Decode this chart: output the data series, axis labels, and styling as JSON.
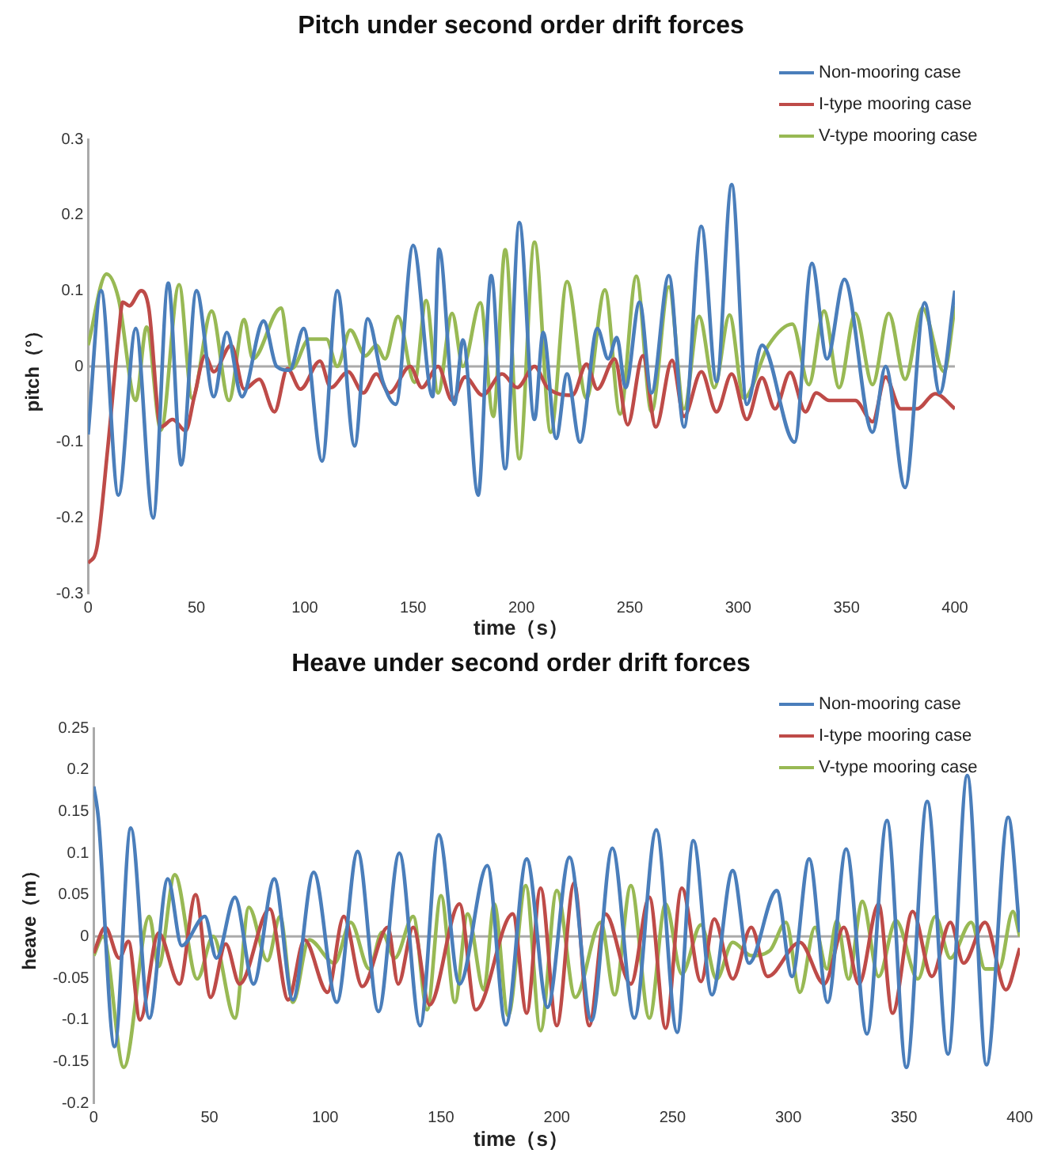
{
  "chart_data": [
    {
      "type": "line",
      "title": "Pitch under second order drift forces",
      "xlabel": "time（s）",
      "ylabel": "pitch（°）",
      "xlim": [
        0,
        400
      ],
      "xticks": [
        0,
        50,
        100,
        150,
        200,
        250,
        300,
        350,
        400
      ],
      "ylim": [
        -0.3,
        0.3
      ],
      "yticks": [
        -0.3,
        -0.2,
        -0.1,
        0,
        0.1,
        0.2,
        0.3
      ],
      "grid": false,
      "ref_lines": [
        {
          "axis": "y",
          "value": 0,
          "color": "#aaaaaa"
        }
      ],
      "legend": "top right",
      "marker": "none",
      "series": [
        {
          "name": "Non-mooring case",
          "color": "#4a7ebb",
          "x": [
            0,
            6,
            14,
            22,
            30,
            37,
            43,
            50,
            58,
            64,
            71,
            81,
            87,
            93,
            99.5,
            108,
            115,
            123,
            129,
            136,
            142,
            150,
            159,
            162,
            169,
            173,
            180,
            186,
            192.5,
            199,
            206,
            210,
            216,
            221,
            227,
            235,
            240,
            244,
            248,
            254.5,
            260,
            268,
            275,
            283,
            290,
            297,
            304,
            311,
            326,
            334,
            341,
            349,
            362,
            368,
            377,
            386,
            393,
            400
          ],
          "values": [
            -0.09,
            0.1,
            -0.17,
            0.05,
            -0.2,
            0.11,
            -0.13,
            0.1,
            -0.04,
            0.045,
            -0.04,
            0.06,
            0,
            -0.005,
            0.05,
            -0.125,
            0.1,
            -0.105,
            0.063,
            -0.02,
            -0.05,
            0.16,
            -0.04,
            0.155,
            -0.05,
            0.035,
            -0.17,
            0.12,
            -0.135,
            0.19,
            -0.07,
            0.045,
            -0.095,
            -0.01,
            -0.1,
            0.05,
            0.01,
            0.038,
            -0.028,
            0.085,
            -0.035,
            0.12,
            -0.08,
            0.185,
            -0.02,
            0.24,
            -0.05,
            0.028,
            -0.1,
            0.136,
            0.01,
            0.115,
            -0.087,
            0,
            -0.16,
            0.084,
            -0.035,
            0.1
          ]
        },
        {
          "name": "I-type mooring case",
          "color": "#be4b48",
          "x": [
            0,
            4,
            9,
            14,
            16,
            19,
            24.5,
            28,
            33.6,
            39,
            45,
            49,
            54,
            58,
            66,
            72,
            79,
            86,
            92,
            98,
            107,
            112,
            120,
            127,
            133,
            139,
            148.6,
            154,
            161.5,
            168,
            174,
            182,
            191,
            198,
            206,
            212,
            223.5,
            230,
            235,
            243,
            249,
            256,
            262,
            269.5,
            275,
            283,
            290,
            297,
            304,
            311,
            317,
            324,
            331,
            336,
            342,
            354,
            362,
            368,
            375,
            382.5,
            391,
            400
          ],
          "values": [
            -0.26,
            -0.24,
            -0.11,
            0.04,
            0.085,
            0.08,
            0.1,
            0.077,
            -0.08,
            -0.07,
            -0.085,
            -0.04,
            0.014,
            -0.007,
            0.028,
            -0.03,
            -0.017,
            -0.06,
            -0.003,
            -0.03,
            0.007,
            -0.028,
            -0.007,
            -0.035,
            -0.01,
            -0.035,
            0,
            -0.028,
            0,
            -0.045,
            -0.014,
            -0.038,
            -0.01,
            -0.028,
            0,
            -0.028,
            -0.038,
            0.003,
            -0.03,
            0.01,
            -0.077,
            0.014,
            -0.08,
            0.008,
            -0.066,
            -0.007,
            -0.06,
            -0.01,
            -0.07,
            -0.015,
            -0.056,
            -0.008,
            -0.06,
            -0.035,
            -0.045,
            -0.045,
            -0.073,
            -0.014,
            -0.056,
            -0.056,
            -0.036,
            -0.056
          ]
        },
        {
          "name": "V-type mooring case",
          "color": "#98b954",
          "x": [
            0,
            8.5,
            14,
            22,
            27,
            33.6,
            42,
            48,
            57,
            65,
            72,
            76,
            89,
            94,
            102,
            110,
            115,
            121,
            128,
            133,
            137,
            143,
            150.6,
            156,
            161.5,
            168,
            173,
            181,
            187,
            192.5,
            199,
            206,
            213.5,
            221,
            230,
            238.5,
            245.5,
            253,
            260,
            268,
            275,
            282,
            289,
            296,
            302.6,
            314,
            325,
            332.6,
            339.6,
            346.6,
            354,
            362,
            369.5,
            377,
            385,
            395,
            400
          ],
          "values": [
            0.028,
            0.122,
            0.09,
            -0.045,
            0.052,
            -0.084,
            0.108,
            -0.042,
            0.073,
            -0.045,
            0.062,
            0.01,
            0.077,
            -0.003,
            0.036,
            0.036,
            0,
            0.048,
            0.014,
            0.028,
            0.01,
            0.066,
            -0.021,
            0.087,
            -0.035,
            0.07,
            0,
            0.084,
            -0.066,
            0.154,
            -0.122,
            0.164,
            -0.087,
            0.112,
            -0.042,
            0.101,
            -0.063,
            0.119,
            -0.06,
            0.105,
            -0.056,
            0.066,
            -0.028,
            0.068,
            -0.042,
            0.028,
            0.056,
            -0.024,
            0.073,
            -0.028,
            0.07,
            -0.024,
            0.07,
            -0.017,
            0.077,
            -0.007,
            0.08
          ]
        }
      ]
    },
    {
      "type": "line",
      "title": "Heave under second order drift forces",
      "xlabel": "time（s）",
      "ylabel": "heave（m）",
      "xlim": [
        0,
        400
      ],
      "xticks": [
        0,
        50,
        100,
        150,
        200,
        250,
        300,
        350,
        400
      ],
      "ylim": [
        -0.2,
        0.25
      ],
      "yticks": [
        -0.2,
        -0.15,
        -0.1,
        -0.05,
        0,
        0.05,
        0.1,
        0.15,
        0.2,
        0.25
      ],
      "grid": false,
      "ref_lines": [
        {
          "axis": "y",
          "value": 0,
          "color": "#aaaaaa"
        }
      ],
      "legend": "top right",
      "marker": "none",
      "series": [
        {
          "name": "Non-mooring case",
          "color": "#4a7ebb",
          "x": [
            0,
            2,
            9,
            16,
            24,
            32,
            38,
            48,
            53,
            61,
            69,
            78,
            86,
            95,
            105,
            114,
            123,
            132,
            141,
            149,
            158,
            170,
            178,
            187,
            196,
            205.5,
            215,
            224,
            233.5,
            243,
            252,
            259,
            267,
            276,
            283,
            295,
            301.6,
            309,
            317,
            325,
            334,
            342.6,
            351,
            360,
            369,
            377.3,
            385.6,
            395,
            400
          ],
          "values": [
            0.18,
            0.142,
            -0.132,
            0.13,
            -0.098,
            0.069,
            -0.011,
            0.024,
            -0.026,
            0.047,
            -0.057,
            0.069,
            -0.076,
            0.077,
            -0.079,
            0.102,
            -0.09,
            0.1,
            -0.107,
            0.122,
            -0.057,
            0.085,
            -0.106,
            0.093,
            -0.085,
            0.095,
            -0.101,
            0.106,
            -0.098,
            0.128,
            -0.115,
            0.115,
            -0.07,
            0.079,
            -0.032,
            0.055,
            -0.048,
            0.093,
            -0.079,
            0.105,
            -0.117,
            0.139,
            -0.157,
            0.162,
            -0.141,
            0.193,
            -0.154,
            0.143,
            0.005
          ]
        },
        {
          "name": "I-type mooring case",
          "color": "#be4b48",
          "x": [
            0,
            5,
            11,
            15,
            20,
            28,
            37,
            44,
            50.5,
            57,
            63,
            76,
            84,
            91,
            101,
            108,
            116,
            127,
            131.5,
            138,
            145,
            158,
            165,
            181,
            187,
            193,
            200,
            207.5,
            214,
            221,
            232,
            240,
            247,
            254,
            262.3,
            268,
            276,
            284,
            291,
            305,
            315.5,
            324,
            330.5,
            339,
            345,
            353.7,
            362,
            370,
            375.7,
            385,
            394,
            400
          ],
          "values": [
            -0.02,
            0.011,
            -0.026,
            -0.006,
            -0.1,
            0.004,
            -0.057,
            0.05,
            -0.073,
            -0.009,
            -0.057,
            0.033,
            -0.076,
            -0.004,
            -0.067,
            0.024,
            -0.06,
            0.011,
            -0.057,
            0.011,
            -0.082,
            0.039,
            -0.088,
            0.027,
            -0.092,
            0.058,
            -0.107,
            0.064,
            -0.107,
            0.027,
            -0.057,
            0.047,
            -0.11,
            0.058,
            -0.054,
            0.021,
            -0.051,
            0.011,
            -0.048,
            -0.007,
            -0.057,
            0.011,
            -0.057,
            0.039,
            -0.092,
            0.03,
            -0.048,
            0.017,
            -0.032,
            0.017,
            -0.064,
            -0.014
          ]
        },
        {
          "name": "V-type mooring case",
          "color": "#98b954",
          "x": [
            0,
            4,
            13,
            24,
            28,
            35,
            44.7,
            51.6,
            61,
            67,
            75,
            80.5,
            86,
            93,
            104,
            111,
            119,
            124.5,
            130,
            138,
            144,
            150,
            156,
            161.5,
            168.5,
            173,
            179,
            186.6,
            193,
            200,
            208,
            219,
            225,
            232,
            240,
            247,
            254,
            262.3,
            269,
            276,
            284,
            292,
            299,
            305,
            311.5,
            316.7,
            321,
            326,
            332,
            339,
            346.5,
            356,
            363.5,
            370,
            379,
            385,
            391,
            397,
            400
          ],
          "values": [
            -0.023,
            0,
            -0.157,
            0.024,
            -0.036,
            0.074,
            -0.051,
            0,
            -0.098,
            0.035,
            -0.029,
            0.024,
            -0.079,
            -0.004,
            -0.032,
            0.017,
            -0.039,
            0.005,
            -0.026,
            0.024,
            -0.088,
            0.049,
            -0.079,
            0.027,
            -0.064,
            0.039,
            -0.095,
            0.061,
            -0.113,
            0.055,
            -0.073,
            0.017,
            -0.07,
            0.061,
            -0.098,
            0.039,
            -0.045,
            0.014,
            -0.051,
            -0.007,
            -0.023,
            -0.017,
            0.017,
            -0.067,
            0.011,
            -0.039,
            0.019,
            -0.051,
            0.042,
            -0.048,
            0.019,
            -0.051,
            0.024,
            -0.026,
            0.017,
            -0.039,
            -0.039,
            0.03,
            0
          ]
        }
      ]
    }
  ]
}
